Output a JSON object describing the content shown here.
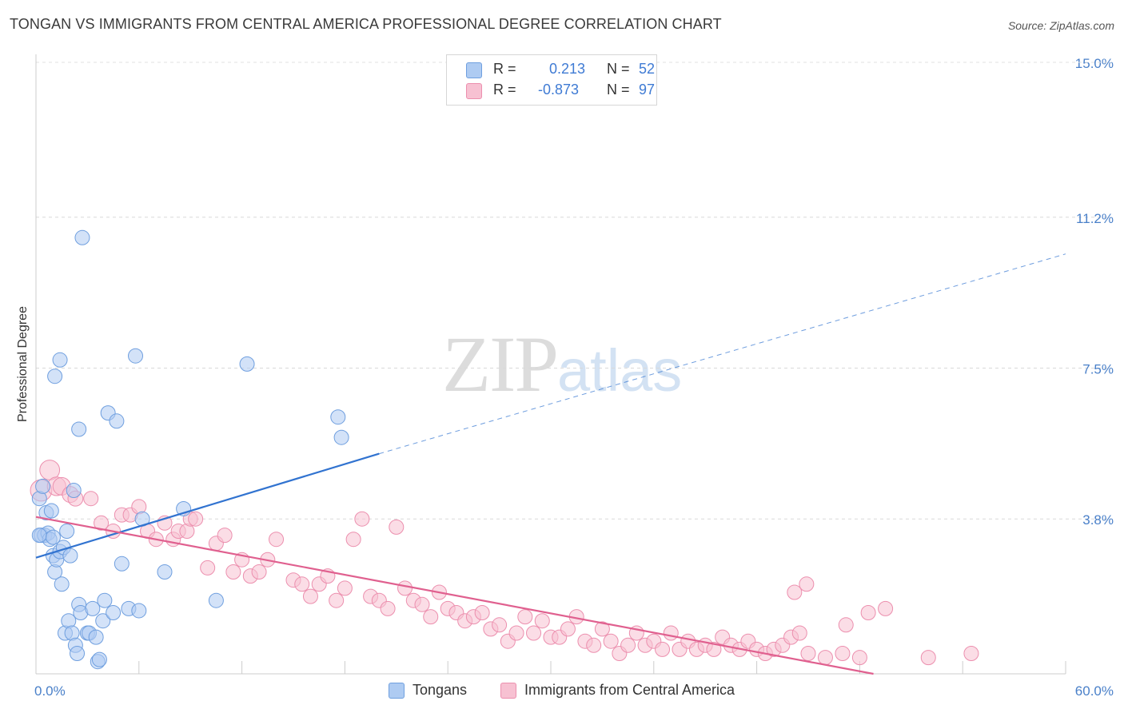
{
  "title": "TONGAN VS IMMIGRANTS FROM CENTRAL AMERICA PROFESSIONAL DEGREE CORRELATION CHART",
  "source": "Source: ZipAtlas.com",
  "watermark": {
    "zip": "ZIP",
    "atlas": "atlas"
  },
  "legend": {
    "r_label": "R =",
    "n_label": "N =",
    "rows": [
      {
        "r": "0.213",
        "n": "52",
        "color": "#aecbf2",
        "border": "#6f9fdf"
      },
      {
        "r": "-0.873",
        "n": "97",
        "color": "#f7c1d2",
        "border": "#ec8fae"
      }
    ]
  },
  "chart_data": {
    "type": "scatter",
    "title": "TONGAN VS IMMIGRANTS FROM CENTRAL AMERICA PROFESSIONAL DEGREE CORRELATION CHART",
    "xlabel": "",
    "ylabel": "Professional Degree",
    "xlim": [
      0,
      60
    ],
    "ylim": [
      0,
      15
    ],
    "x_tick_labels": [
      "0.0%",
      "60.0%"
    ],
    "y_ticks": [
      3.8,
      7.5,
      11.2,
      15.0
    ],
    "y_tick_labels": [
      "3.8%",
      "7.5%",
      "11.2%",
      "15.0%"
    ],
    "grid": "horizontal dashed",
    "legend_position": "top-center",
    "series": [
      {
        "name": "Tongans",
        "color": "#aecbf2",
        "edge": "#6f9fdf",
        "line_color": "#3173d0",
        "R": 0.213,
        "N": 52,
        "trend": {
          "x0": 0,
          "y0": 2.85,
          "x1": 20,
          "y1": 5.4,
          "dash_to_x": 60,
          "dash_to_y": 10.3
        },
        "points": [
          [
            0.2,
            4.3
          ],
          [
            0.3,
            3.4
          ],
          [
            0.5,
            3.4
          ],
          [
            0.6,
            3.95
          ],
          [
            0.7,
            3.45
          ],
          [
            0.8,
            3.3
          ],
          [
            0.9,
            4.0
          ],
          [
            1.0,
            2.9
          ],
          [
            1.1,
            2.5
          ],
          [
            1.2,
            2.8
          ],
          [
            1.4,
            3.0
          ],
          [
            1.5,
            2.2
          ],
          [
            1.6,
            3.1
          ],
          [
            1.7,
            1.0
          ],
          [
            1.8,
            3.5
          ],
          [
            1.9,
            1.3
          ],
          [
            2.0,
            2.9
          ],
          [
            2.1,
            1.0
          ],
          [
            2.3,
            0.7
          ],
          [
            2.4,
            0.5
          ],
          [
            2.5,
            1.7
          ],
          [
            2.6,
            1.5
          ],
          [
            2.7,
            10.7
          ],
          [
            3.0,
            1.0
          ],
          [
            3.1,
            1.0
          ],
          [
            3.3,
            1.6
          ],
          [
            3.5,
            0.9
          ],
          [
            3.6,
            0.3
          ],
          [
            3.7,
            0.35
          ],
          [
            3.9,
            1.3
          ],
          [
            4.0,
            1.8
          ],
          [
            4.2,
            6.4
          ],
          [
            4.5,
            1.5
          ],
          [
            4.7,
            6.2
          ],
          [
            5.0,
            2.7
          ],
          [
            5.4,
            1.6
          ],
          [
            5.8,
            7.8
          ],
          [
            6.0,
            1.55
          ],
          [
            6.2,
            3.8
          ],
          [
            7.5,
            2.5
          ],
          [
            8.6,
            4.05
          ],
          [
            10.5,
            1.8
          ],
          [
            12.3,
            7.6
          ],
          [
            17.6,
            6.3
          ],
          [
            17.8,
            5.8
          ],
          [
            1.1,
            7.3
          ],
          [
            1.4,
            7.7
          ],
          [
            2.5,
            6.0
          ],
          [
            0.4,
            4.6
          ],
          [
            0.2,
            3.4
          ],
          [
            1.0,
            3.35
          ],
          [
            2.2,
            4.5
          ]
        ]
      },
      {
        "name": "Immigrants from Central America",
        "color": "#f7c1d2",
        "edge": "#ec8fae",
        "line_color": "#e0608f",
        "R": -0.873,
        "N": 97,
        "trend": {
          "x0": 0,
          "y0": 3.85,
          "x1": 48.8,
          "y1": 0
        },
        "points": [
          [
            0.3,
            4.5
          ],
          [
            0.8,
            5.0
          ],
          [
            1.2,
            4.6
          ],
          [
            1.5,
            4.6
          ],
          [
            2.0,
            4.4
          ],
          [
            2.3,
            4.3
          ],
          [
            3.2,
            4.3
          ],
          [
            3.8,
            3.7
          ],
          [
            4.5,
            3.5
          ],
          [
            5.0,
            3.9
          ],
          [
            5.5,
            3.9
          ],
          [
            6.0,
            4.1
          ],
          [
            6.5,
            3.5
          ],
          [
            7.0,
            3.3
          ],
          [
            7.5,
            3.7
          ],
          [
            8.0,
            3.3
          ],
          [
            8.3,
            3.5
          ],
          [
            8.8,
            3.5
          ],
          [
            9.0,
            3.8
          ],
          [
            9.3,
            3.8
          ],
          [
            10.0,
            2.6
          ],
          [
            10.5,
            3.2
          ],
          [
            11.0,
            3.4
          ],
          [
            11.5,
            2.5
          ],
          [
            12.0,
            2.8
          ],
          [
            12.5,
            2.4
          ],
          [
            13.0,
            2.5
          ],
          [
            13.5,
            2.8
          ],
          [
            14.0,
            3.3
          ],
          [
            15.0,
            2.3
          ],
          [
            15.5,
            2.2
          ],
          [
            16.0,
            1.9
          ],
          [
            16.5,
            2.2
          ],
          [
            17.0,
            2.4
          ],
          [
            17.5,
            1.8
          ],
          [
            18.0,
            2.1
          ],
          [
            18.5,
            3.3
          ],
          [
            19.0,
            3.8
          ],
          [
            19.5,
            1.9
          ],
          [
            20.0,
            1.8
          ],
          [
            20.5,
            1.6
          ],
          [
            21.0,
            3.6
          ],
          [
            21.5,
            2.1
          ],
          [
            22.0,
            1.8
          ],
          [
            22.5,
            1.7
          ],
          [
            23.0,
            1.4
          ],
          [
            23.5,
            2.0
          ],
          [
            24.0,
            1.6
          ],
          [
            24.5,
            1.5
          ],
          [
            25.0,
            1.3
          ],
          [
            25.5,
            1.4
          ],
          [
            26.0,
            1.5
          ],
          [
            26.5,
            1.1
          ],
          [
            27.0,
            1.2
          ],
          [
            27.5,
            0.8
          ],
          [
            28.0,
            1.0
          ],
          [
            28.5,
            1.4
          ],
          [
            29.0,
            1.0
          ],
          [
            29.5,
            1.3
          ],
          [
            30.0,
            0.9
          ],
          [
            30.5,
            0.9
          ],
          [
            31.0,
            1.1
          ],
          [
            31.5,
            1.4
          ],
          [
            32.0,
            0.8
          ],
          [
            32.5,
            0.7
          ],
          [
            33.0,
            1.1
          ],
          [
            33.5,
            0.8
          ],
          [
            34.0,
            0.5
          ],
          [
            34.5,
            0.7
          ],
          [
            35.0,
            1.0
          ],
          [
            35.5,
            0.7
          ],
          [
            36.0,
            0.8
          ],
          [
            36.5,
            0.6
          ],
          [
            37.0,
            1.0
          ],
          [
            37.5,
            0.6
          ],
          [
            38.0,
            0.8
          ],
          [
            38.5,
            0.6
          ],
          [
            39.0,
            0.7
          ],
          [
            39.5,
            0.6
          ],
          [
            40.0,
            0.9
          ],
          [
            40.5,
            0.7
          ],
          [
            41.0,
            0.6
          ],
          [
            41.5,
            0.8
          ],
          [
            42.0,
            0.6
          ],
          [
            42.5,
            0.5
          ],
          [
            43.0,
            0.6
          ],
          [
            43.5,
            0.7
          ],
          [
            44.0,
            0.9
          ],
          [
            44.5,
            1.0
          ],
          [
            45.0,
            0.5
          ],
          [
            46.0,
            0.4
          ],
          [
            47.0,
            0.5
          ],
          [
            48.0,
            0.4
          ],
          [
            44.2,
            2.0
          ],
          [
            44.9,
            2.2
          ],
          [
            47.2,
            1.2
          ],
          [
            48.5,
            1.5
          ],
          [
            49.5,
            1.6
          ],
          [
            52.0,
            0.4
          ],
          [
            54.5,
            0.5
          ]
        ]
      }
    ]
  }
}
